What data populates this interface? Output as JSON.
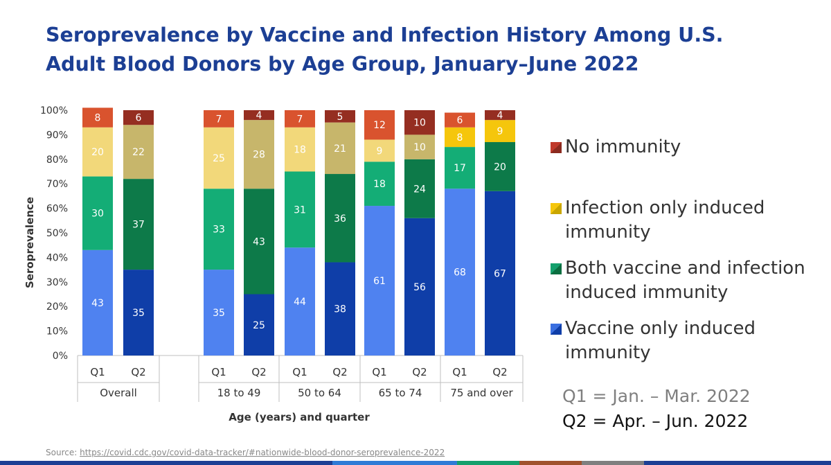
{
  "title": {
    "line1": "Seroprevalence by Vaccine and Infection History Among U.S.",
    "line2": "Adult Blood Donors by Age Group, January–June 2022"
  },
  "chart_data": {
    "type": "bar",
    "stacked": true,
    "ylabel": "Seroprevalence",
    "xlabel": "Age (years) and quarter",
    "ylim": [
      0,
      100
    ],
    "yticks": [
      "0%",
      "10%",
      "20%",
      "30%",
      "40%",
      "50%",
      "60%",
      "70%",
      "80%",
      "90%",
      "100%"
    ],
    "groups": [
      {
        "name": "Overall",
        "categories": [
          "Q1",
          "Q2"
        ]
      },
      {
        "name": "18 to 49",
        "categories": [
          "Q1",
          "Q2"
        ]
      },
      {
        "name": "50 to 64",
        "categories": [
          "Q1",
          "Q2"
        ]
      },
      {
        "name": "65 to 74",
        "categories": [
          "Q1",
          "Q2"
        ]
      },
      {
        "name": "75 and over",
        "categories": [
          "Q1",
          "Q2"
        ]
      }
    ],
    "series": [
      {
        "name": "Vaccine only induced immunity",
        "key": "vaccine",
        "colors": {
          "Q1": "#4f82f0",
          "Q2": "#0f3ea8"
        },
        "values": [
          43,
          35,
          35,
          25,
          44,
          38,
          61,
          56,
          68,
          67
        ]
      },
      {
        "name": "Both vaccine and infection induced immunity",
        "key": "both",
        "colors": {
          "Q1": "#14ad76",
          "Q2": "#0d7a49"
        },
        "values": [
          30,
          37,
          33,
          43,
          31,
          36,
          18,
          24,
          17,
          20
        ]
      },
      {
        "name": "Infection only induced immunity",
        "key": "infection",
        "colors": {
          "Q1": "#f2d87a",
          "Q2": "#c7b66b"
        },
        "values": [
          20,
          22,
          25,
          28,
          18,
          21,
          9,
          10,
          8,
          9
        ]
      },
      {
        "name": "No immunity",
        "key": "none",
        "colors": {
          "Q1": "#d9532e",
          "Q2": "#952e21"
        },
        "values": [
          8,
          6,
          7,
          4,
          7,
          5,
          12,
          10,
          6,
          4
        ]
      }
    ],
    "overrides": [
      {
        "bar": 8,
        "series": "infection",
        "color": "#f5c60c"
      },
      {
        "bar": 9,
        "series": "infection",
        "color": "#f5c60c"
      }
    ],
    "label_colors": {
      "light": "#333333",
      "dark": "#ffffff"
    }
  },
  "legend": {
    "items": [
      {
        "label": "No immunity",
        "color": "#c0392b",
        "color2": "#8b2a1f"
      },
      {
        "label": "Infection only induced immunity",
        "color": "#f5c60c",
        "color2": "#c9a600"
      },
      {
        "label": "Both vaccine and infection induced immunity",
        "color": "#14a06c",
        "color2": "#0b6e40"
      },
      {
        "label": "Vaccine only induced immunity",
        "color": "#3a6fe0",
        "color2": "#0f3ea8"
      }
    ]
  },
  "notes": {
    "q1": "Q1 = Jan. – Mar. 2022",
    "q2": "Q2 = Apr. – Jun. 2022",
    "q1_color": "#7f7f7f",
    "q2_color": "#111111"
  },
  "source": {
    "prefix": "Source:",
    "url": "https://covid.cdc.gov/covid-data-tracker/#nationwide-blood-donor-seroprevalence-2022"
  },
  "bottom_bar_colors": [
    "#1c3f94",
    "#1c3f94",
    "#2e7bd6",
    "#14a06c",
    "#a0522d",
    "#7f7f7f",
    "#1c3f94"
  ]
}
